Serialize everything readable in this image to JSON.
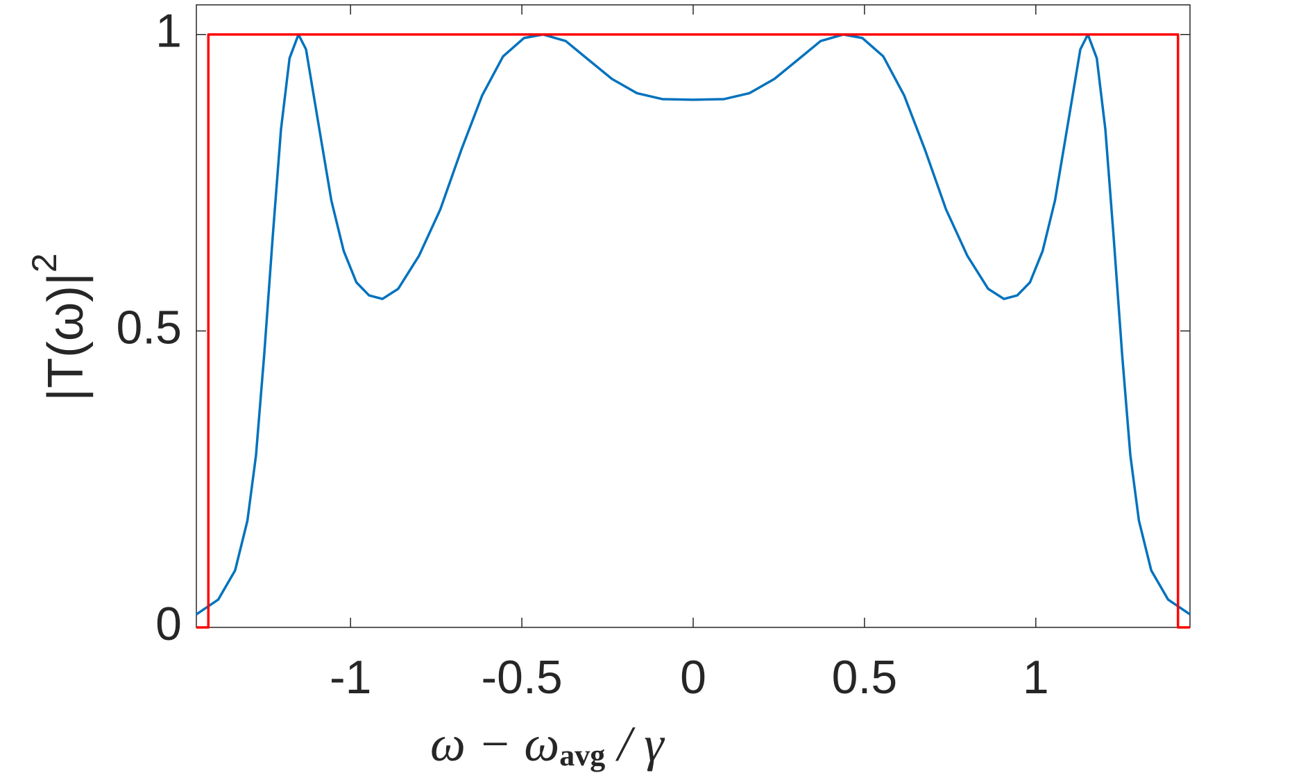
{
  "chart_data": {
    "type": "line",
    "xlabel": [
      "ω − ω",
      "avg",
      " / γ"
    ],
    "ylabel": [
      "|T(ω)|",
      "2"
    ],
    "xlim": [
      -1.45,
      1.45
    ],
    "ylim": [
      0,
      1.05
    ],
    "xticks": [
      -1,
      -0.5,
      0,
      0.5,
      1
    ],
    "yticks": [
      0,
      0.5,
      1
    ],
    "series": [
      {
        "color": "#0072bd",
        "x": [
          -1.45,
          -1.386,
          -1.337,
          -1.301,
          -1.276,
          -1.252,
          -1.227,
          -1.203,
          -1.178,
          -1.152,
          -1.13,
          -1.093,
          -1.056,
          -1.02,
          -0.983,
          -0.946,
          -0.907,
          -0.861,
          -0.8,
          -0.738,
          -0.677,
          -0.616,
          -0.555,
          -0.494,
          -0.438,
          -0.372,
          -0.311,
          -0.237,
          -0.164,
          -0.09,
          0,
          0.09,
          0.164,
          0.237,
          0.311,
          0.372,
          0.438,
          0.494,
          0.555,
          0.616,
          0.677,
          0.738,
          0.8,
          0.861,
          0.907,
          0.946,
          0.983,
          1.02,
          1.056,
          1.093,
          1.13,
          1.152,
          1.178,
          1.203,
          1.227,
          1.252,
          1.276,
          1.301,
          1.337,
          1.386,
          1.45
        ],
        "values": [
          0.022,
          0.047,
          0.096,
          0.18,
          0.29,
          0.46,
          0.66,
          0.84,
          0.96,
          1.0,
          0.975,
          0.847,
          0.72,
          0.635,
          0.582,
          0.56,
          0.554,
          0.571,
          0.627,
          0.705,
          0.805,
          0.897,
          0.963,
          0.994,
          1.0,
          0.989,
          0.96,
          0.925,
          0.901,
          0.891,
          0.89,
          0.891,
          0.901,
          0.925,
          0.96,
          0.989,
          1.0,
          0.994,
          0.963,
          0.897,
          0.805,
          0.705,
          0.627,
          0.571,
          0.554,
          0.56,
          0.582,
          0.635,
          0.72,
          0.847,
          0.975,
          1.0,
          0.96,
          0.84,
          0.66,
          0.46,
          0.29,
          0.18,
          0.096,
          0.047,
          0.022
        ]
      },
      {
        "color": "#ff0000",
        "x": [
          -1.45,
          -1.415,
          -1.415,
          1.415,
          1.415,
          1.45
        ],
        "values": [
          0,
          0,
          1,
          1,
          0,
          0
        ]
      }
    ]
  }
}
